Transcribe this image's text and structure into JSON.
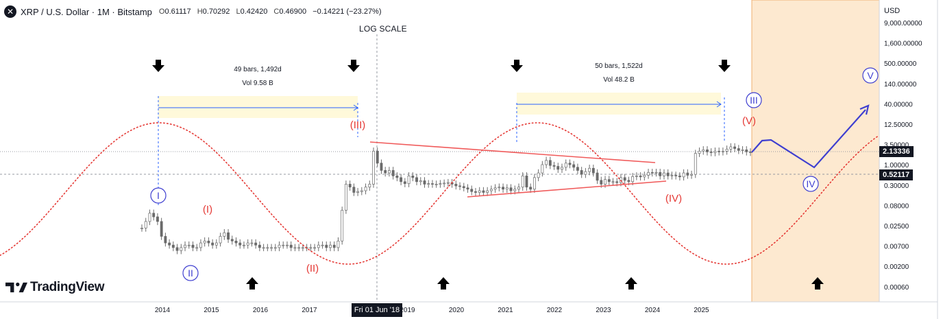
{
  "header": {
    "title": "XRP / U.S. Dollar · 1M · Bitstamp",
    "ohlc": [
      {
        "k": "O",
        "v": "0.61117"
      },
      {
        "k": "H",
        "v": "0.70292"
      },
      {
        "k": "L",
        "v": "0.42420"
      },
      {
        "k": "C",
        "v": "0.46900"
      }
    ],
    "change": "−0.14221 (−23.27%)",
    "close_icon": "close-icon"
  },
  "scale_label": "LOG SCALE",
  "currency": "USD",
  "brand": "TradingView",
  "crosshair_date": "Fri 01 Jun '18",
  "price_tags": {
    "current": "2.13336",
    "crosshair": "0.52117"
  },
  "colors": {
    "cycle": "#e53935",
    "wave_blue": "#3f3fd0",
    "trend": "#f05a5a",
    "projection": "#fde9d0",
    "candle": "#6b6b6b"
  },
  "chart_data": {
    "type": "candlestick",
    "scale": "log",
    "y_ticks": [
      "9,000.00000",
      "1,600.00000",
      "500.00000",
      "140.00000",
      "40.00000",
      "12.50000",
      "3.50000",
      "1.00000",
      "0.30000",
      "0.08000",
      "0.02500",
      "0.00700",
      "0.00200",
      "0.00060"
    ],
    "x_ticks": [
      "2014",
      "2015",
      "2016",
      "2017",
      "2018",
      "2019",
      "2020",
      "2021",
      "2022",
      "2023",
      "2024",
      "2025"
    ],
    "cycle_measurements": [
      {
        "bars": "49 bars, 1,492d",
        "vol": "Vol 9.58 B"
      },
      {
        "bars": "50 bars, 1,522d",
        "vol": "Vol 48.2 B"
      }
    ],
    "wave_labels_blue": [
      "I",
      "II",
      "III",
      "IV",
      "V"
    ],
    "wave_labels_red": [
      "(I)",
      "(II)",
      "(III)",
      "(IV)",
      "(V)"
    ],
    "monthly_closes": [
      0.02,
      0.03,
      0.05,
      0.04,
      0.03,
      0.012,
      0.008,
      0.007,
      0.006,
      0.005,
      0.006,
      0.007,
      0.007,
      0.006,
      0.006,
      0.008,
      0.009,
      0.008,
      0.007,
      0.008,
      0.012,
      0.015,
      0.01,
      0.009,
      0.008,
      0.007,
      0.007,
      0.008,
      0.008,
      0.007,
      0.006,
      0.006,
      0.006,
      0.006,
      0.006,
      0.007,
      0.007,
      0.007,
      0.006,
      0.006,
      0.006,
      0.006,
      0.006,
      0.006,
      0.006,
      0.007,
      0.007,
      0.006,
      0.007,
      0.006,
      0.009,
      0.06,
      0.3,
      0.25,
      0.18,
      0.19,
      0.2,
      0.25,
      0.3,
      2.3,
      1.1,
      0.7,
      0.6,
      0.7,
      0.5,
      0.45,
      0.35,
      0.31,
      0.5,
      0.45,
      0.35,
      0.37,
      0.3,
      0.31,
      0.3,
      0.3,
      0.31,
      0.32,
      0.33,
      0.3,
      0.27,
      0.26,
      0.24,
      0.22,
      0.19,
      0.18,
      0.2,
      0.18,
      0.2,
      0.22,
      0.24,
      0.25,
      0.22,
      0.24,
      0.2,
      0.22,
      0.25,
      0.5,
      0.25,
      0.22,
      0.45,
      0.6,
      1.0,
      1.3,
      0.95,
      0.9,
      0.75,
      0.85,
      1.1,
      1.0,
      0.85,
      0.7,
      0.55,
      0.65,
      0.8,
      0.6,
      0.38,
      0.3,
      0.4,
      0.35,
      0.35,
      0.33,
      0.45,
      0.38,
      0.35,
      0.48,
      0.5,
      0.47,
      0.52,
      0.62,
      0.6,
      0.62,
      0.5,
      0.6,
      0.5,
      0.52,
      0.5,
      0.47,
      0.6,
      0.52,
      0.55,
      2.0,
      2.3,
      2.5,
      2.2,
      2.1,
      2.3,
      2.2,
      2.3,
      2.6,
      3.0,
      2.7,
      2.4,
      2.5,
      2.2,
      2.13
    ]
  }
}
